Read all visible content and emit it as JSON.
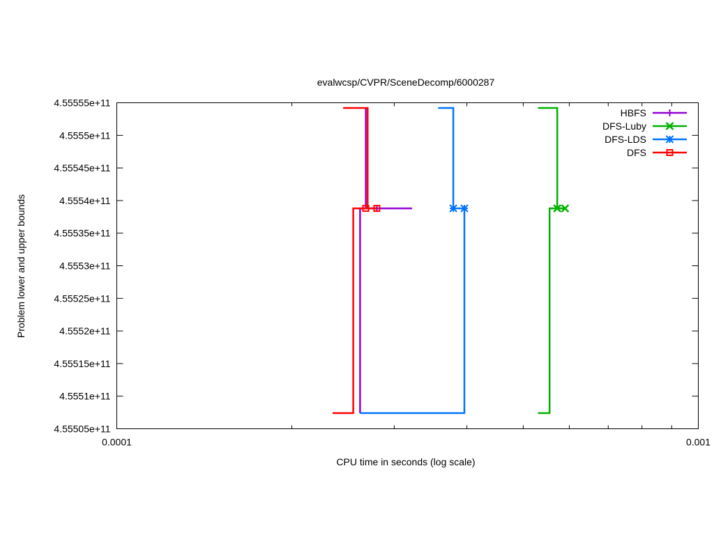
{
  "chart_data": {
    "type": "line",
    "title": "evalwcsp/CVPR/SceneDecomp/6000287",
    "xlabel": "CPU time in seconds (log scale)",
    "ylabel": "Problem lower and upper bounds",
    "xscale": "log",
    "xlim": [
      0.0001,
      0.001
    ],
    "ylim": [
      455505000000,
      455555000000
    ],
    "x_ticks": [
      0.0001,
      0.001
    ],
    "x_tick_labels": [
      "0.0001",
      "0.001"
    ],
    "y_ticks": [
      455505000000,
      455510000000,
      455515000000,
      455520000000,
      455525000000,
      455530000000,
      455535000000,
      455540000000,
      455545000000,
      455550000000,
      455555000000
    ],
    "y_tick_labels": [
      "4.55505e+11",
      "4.5551e+11",
      "4.55515e+11",
      "4.5552e+11",
      "4.55525e+11",
      "4.5553e+11",
      "4.55535e+11",
      "4.5554e+11",
      "4.55545e+11",
      "4.5555e+11",
      "4.55555e+11"
    ],
    "grid": false,
    "legend_position": "top-right",
    "series": [
      {
        "name": "HBFS",
        "color": "#9400d3",
        "marker": "plus",
        "upper": [
          [
            0.000268,
            455554200000
          ],
          [
            0.000268,
            455538800000
          ],
          [
            0.000322,
            455538800000
          ],
          [
            0.000322,
            455538800000
          ]
        ],
        "lower": [
          [
            0.0,
            0
          ],
          [
            0.000262,
            455507400000
          ],
          [
            0.000262,
            455538800000
          ],
          [
            0.00028,
            455538800000
          ]
        ],
        "marker_points": [
          [
            0.00028,
            455538800000
          ]
        ]
      },
      {
        "name": "DFS-Luby",
        "color": "#00b000",
        "marker": "cross",
        "upper": [
          [
            0.00053,
            455554200000
          ],
          [
            0.000572,
            455554200000
          ],
          [
            0.000572,
            455538800000
          ],
          [
            0.00059,
            455538800000
          ]
        ],
        "lower": [
          [
            0.00053,
            455507400000
          ],
          [
            0.000555,
            455507400000
          ],
          [
            0.000555,
            455538800000
          ],
          [
            0.00059,
            455538800000
          ]
        ],
        "marker_points": [
          [
            0.000572,
            455538800000
          ],
          [
            0.00059,
            455538800000
          ]
        ]
      },
      {
        "name": "DFS-LDS",
        "color": "#0072ff",
        "marker": "star",
        "upper": [
          [
            0.000357,
            455554200000
          ],
          [
            0.000379,
            455554200000
          ],
          [
            0.000379,
            455538800000
          ],
          [
            0.000396,
            455538800000
          ]
        ],
        "lower": [
          [
            0.000262,
            455507400000
          ],
          [
            0.000396,
            455507400000
          ],
          [
            0.000396,
            455538800000
          ]
        ],
        "marker_points": [
          [
            0.000379,
            455538800000
          ],
          [
            0.000396,
            455538800000
          ]
        ]
      },
      {
        "name": "DFS",
        "color": "#ff0000",
        "marker": "square",
        "upper": [
          [
            0.000245,
            455554200000
          ],
          [
            0.00027,
            455554200000
          ],
          [
            0.00027,
            455538800000
          ],
          [
            0.00028,
            455538800000
          ]
        ],
        "lower": [
          [
            0.000235,
            455507400000
          ],
          [
            0.000255,
            455507400000
          ],
          [
            0.000255,
            455538800000
          ],
          [
            0.00027,
            455538800000
          ]
        ],
        "marker_points": [
          [
            0.000268,
            455538800000
          ],
          [
            0.00028,
            455538800000
          ]
        ]
      }
    ]
  }
}
